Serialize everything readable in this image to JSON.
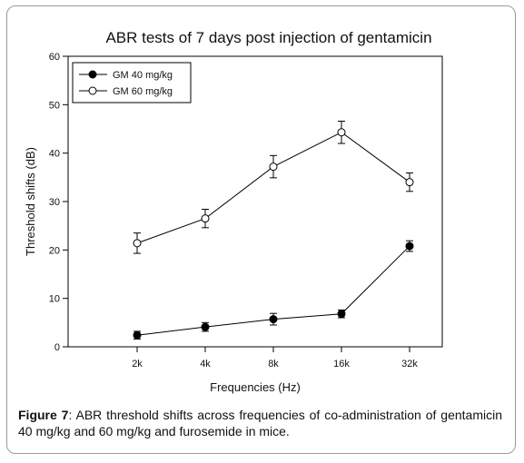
{
  "chart_data": {
    "type": "line",
    "title": "ABR tests of 7 days post injection of gentamicin",
    "xlabel": "Frequencies (Hz)",
    "ylabel": "Threshold shifts (dB)",
    "categories": [
      "2k",
      "4k",
      "8k",
      "16k",
      "32k"
    ],
    "ylim": [
      0,
      60
    ],
    "yticks": [
      0,
      10,
      20,
      30,
      40,
      50,
      60
    ],
    "legend_position": "top-left",
    "grid": false,
    "series": [
      {
        "name": "GM 40 mg/kg",
        "marker": "filled-circle",
        "values": [
          2.4,
          4.1,
          5.7,
          6.8,
          20.8
        ],
        "errors": [
          0.8,
          0.9,
          1.2,
          0.8,
          1.1
        ]
      },
      {
        "name": "GM 60 mg/kg",
        "marker": "open-circle",
        "values": [
          21.4,
          26.5,
          37.2,
          44.3,
          34.0
        ],
        "errors": [
          2.1,
          1.9,
          2.3,
          2.3,
          1.9
        ]
      }
    ]
  },
  "caption": {
    "label": "Figure 7",
    "text": ": ABR threshold shifts across frequencies of co-administration of gentamicin 40 mg/kg and 60 mg/kg and furosemide in mice."
  }
}
